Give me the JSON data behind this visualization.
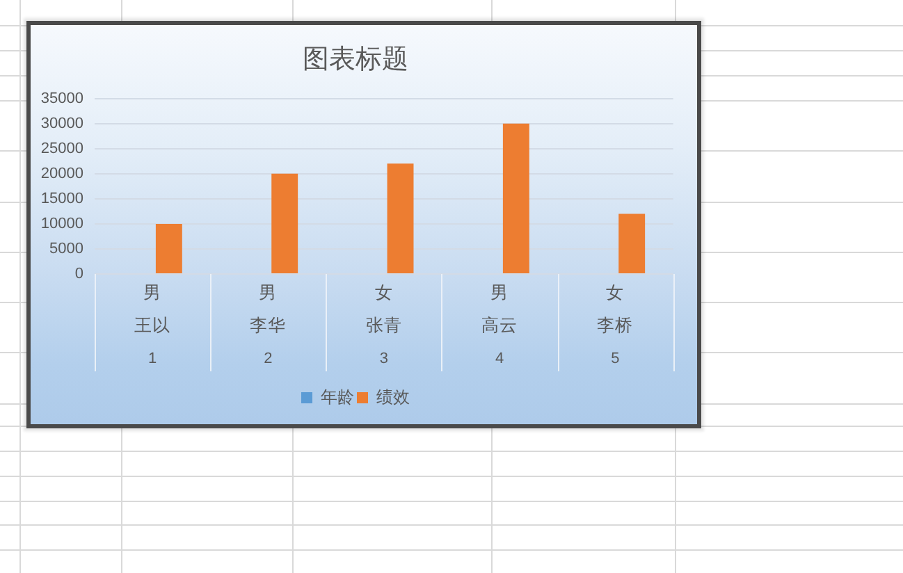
{
  "chart_data": {
    "type": "bar",
    "title": "图表标题",
    "categories": [
      "1",
      "2",
      "3",
      "4",
      "5"
    ],
    "annotations": [
      "男",
      "男",
      "女",
      "男",
      "女",
      "王以",
      "李华",
      "张青",
      "高云",
      "李桥"
    ],
    "series": [
      {
        "name": "年龄",
        "color": "#5b9bd5",
        "values": [
          null,
          null,
          null,
          null,
          null
        ]
      },
      {
        "name": "绩效",
        "color": "#ed7d31",
        "values": [
          10000,
          20000,
          22000,
          30000,
          12000
        ]
      }
    ],
    "ylim": [
      0,
      35000
    ],
    "yticks": [
      0,
      5000,
      10000,
      15000,
      20000,
      25000,
      30000,
      35000
    ],
    "grid": "y",
    "legend": "bottom"
  }
}
